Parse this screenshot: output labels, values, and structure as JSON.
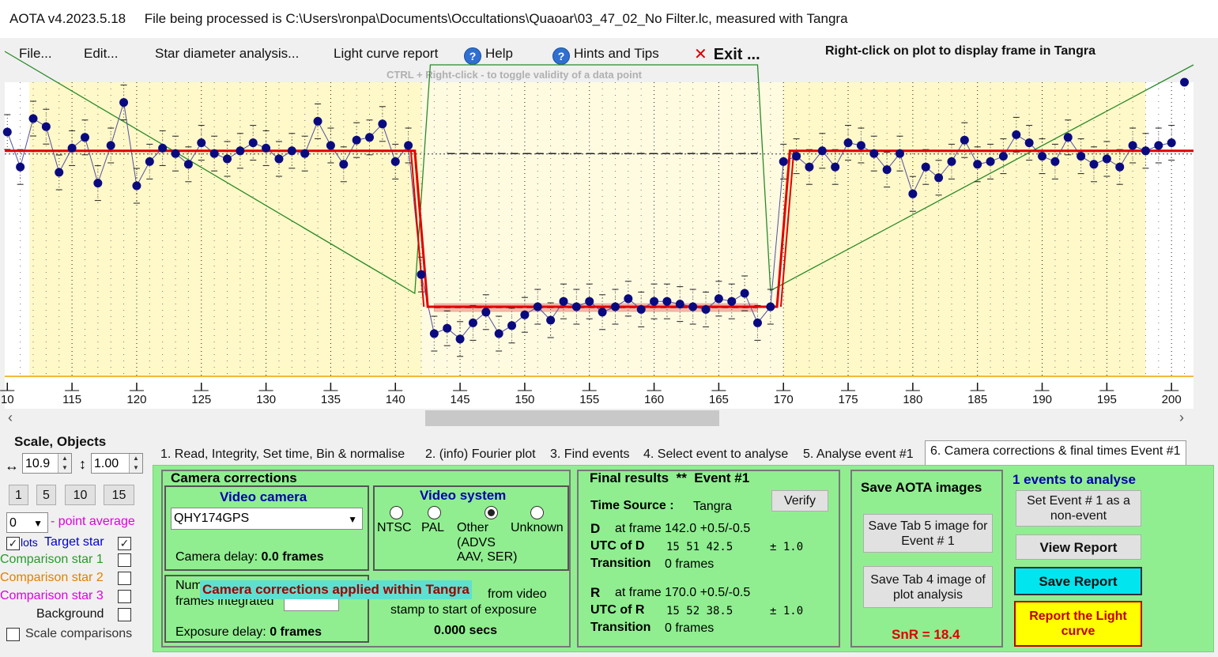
{
  "window": {
    "title": "AOTA v4.2023.5.18     File being processed is C:\\Users\\ronpa\\Documents\\Occultations\\Quaoar\\03_47_02_No Filter.lc, measured with Tangra"
  },
  "menu": {
    "file": "File...",
    "edit": "Edit...",
    "star_diameter": "Star diameter analysis...",
    "light_curve_report": "Light curve report",
    "help": "Help",
    "hints": "Hints and Tips",
    "exit": "Exit ...",
    "right_click_hint": "Right-click on plot to display frame in Tangra",
    "ctrl_hint": "CTRL + Right-click  -  to toggle validity of a data point"
  },
  "chart_data": {
    "type": "line",
    "x_ticks": [
      "10",
      "115",
      "120",
      "125",
      "130",
      "135",
      "140",
      "145",
      "150",
      "155",
      "160",
      "165",
      "170",
      "175",
      "180",
      "185",
      "190",
      "195",
      "200"
    ],
    "xlim": [
      109.8,
      201.7
    ],
    "ylim": [
      0,
      100
    ],
    "grid": "vertical dotted",
    "event_D_frame": 142.0,
    "event_R_frame": 170.0,
    "baseline_level": 78,
    "event_level": 20,
    "points_frame": [
      110,
      111,
      112,
      113,
      114,
      115,
      116,
      117,
      118,
      119,
      120,
      121,
      122,
      123,
      124,
      125,
      126,
      127,
      128,
      129,
      130,
      131,
      132,
      133,
      134,
      135,
      136,
      137,
      138,
      139,
      140,
      141,
      142,
      143,
      144,
      145,
      146,
      147,
      148,
      149,
      150,
      151,
      152,
      153,
      154,
      155,
      156,
      157,
      158,
      159,
      160,
      161,
      162,
      163,
      164,
      165,
      166,
      167,
      168,
      169,
      170,
      171,
      172,
      173,
      174,
      175,
      176,
      177,
      178,
      179,
      180,
      181,
      182,
      183,
      184,
      185,
      186,
      187,
      188,
      189,
      190,
      191,
      192,
      193,
      194,
      195,
      196,
      197,
      198,
      199,
      200,
      201
    ],
    "points_value": [
      85,
      72,
      90,
      87,
      70,
      79,
      83,
      66,
      80,
      96,
      65,
      74,
      79,
      77,
      73,
      81,
      77,
      75,
      78,
      81,
      79,
      75,
      78,
      77,
      89,
      80,
      73,
      82,
      83,
      88,
      74,
      80,
      32,
      10,
      12,
      8,
      14,
      18,
      10,
      13,
      17,
      20,
      15,
      22,
      20,
      22,
      18,
      20,
      23,
      19,
      22,
      22,
      21,
      20,
      19,
      23,
      22,
      25,
      14,
      20,
      74,
      76,
      72,
      78,
      72,
      81,
      80,
      77,
      71,
      77,
      62,
      72,
      68,
      74,
      82,
      73,
      74,
      76,
      84,
      81,
      76,
      74,
      83,
      76,
      73,
      75,
      72,
      80,
      78,
      80,
      81
    ],
    "green_line": [
      [
        109.8,
        115
      ],
      [
        141.5,
        25
      ],
      [
        142.7,
        110
      ],
      [
        168,
        110
      ],
      [
        169,
        26
      ],
      [
        201.7,
        110
      ]
    ]
  },
  "scale": {
    "title": "Scale,  Objects",
    "h_value": "10.9",
    "v_value": "1.00",
    "btns": [
      "1",
      "5",
      "10",
      "15"
    ],
    "avg_value": "0",
    "avg_label": "- point average",
    "plots_label": "lots",
    "target": "Target star",
    "comp1": "Comparison star 1",
    "comp2": "Comparison star 2",
    "comp3": "Comparison star 3",
    "background": "Background",
    "scale_comp": "Scale comparisons",
    "h_arrow": "↔",
    "v_arrow": "↕"
  },
  "tabs": [
    "1.  Read, Integrity, Set time, Bin & normalise",
    "2. (info)  Fourier plot",
    "3. Find events",
    "4. Select event to analyse",
    "5. Analyse event #1",
    "6. Camera corrections & final times Event #1"
  ],
  "camera": {
    "title": "Camera corrections",
    "video_camera": "Video camera",
    "camera_value": "QHY174GPS",
    "camera_delay_label": "Camera delay: ",
    "camera_delay_value": "0.0 frames",
    "video_system": "Video system",
    "ntsc": "NTSC",
    "pal": "PAL",
    "other": "Other",
    "other_sub": "(ADVS",
    "other_sub2": "AAV, SER)",
    "unknown": "Unknown",
    "num_frames": "Num",
    "frames_integrated": "frames integrated",
    "applied_banner": "Camera corrections applied within Tangra",
    "from_video": "from video",
    "stamp_text": "stamp to start of exposure",
    "secs": "0.000 secs",
    "exposure_delay_label": "Exposure delay: ",
    "exposure_delay_value": "0 frames"
  },
  "final": {
    "title": "Final results",
    "stars": "**",
    "event": "Event #1",
    "time_source_label": "Time Source :",
    "time_source": "Tangra",
    "verify": "Verify",
    "D": "D",
    "D_frame": "at frame 142.0  +0.5/-0.5",
    "utc_d_label": "UTC of D",
    "utc_d": "15 51 42.5",
    "utc_d_err": "± 1.0",
    "transition_label": "Transition",
    "transition_d": "0 frames",
    "R": "R",
    "R_frame": "at frame 170.0  +0.5/-0.5",
    "utc_r_label": "UTC of R",
    "utc_r": "15 52 38.5",
    "utc_r_err": "± 1.0",
    "transition_r": "0 frames"
  },
  "save": {
    "title": "Save AOTA images",
    "tab5": "Save Tab 5 image for Event # 1",
    "tab4": "Save Tab 4 image of plot analysis",
    "snr": "SnR = 18.4"
  },
  "report": {
    "events": "1  events to analyse",
    "nonevent": "Set Event # 1 as a non-event",
    "view": "View Report",
    "save": "Save Report",
    "report_lc": "Report the Light curve"
  },
  "colors": {
    "plot_bg": "#fff8c8",
    "fit_line": "#e00000",
    "points": "#0a0a80",
    "green_line": "#2a8a2a",
    "panel_green": "#90ee90",
    "cyan": "#00e5ee",
    "yellow": "#ffff00"
  }
}
